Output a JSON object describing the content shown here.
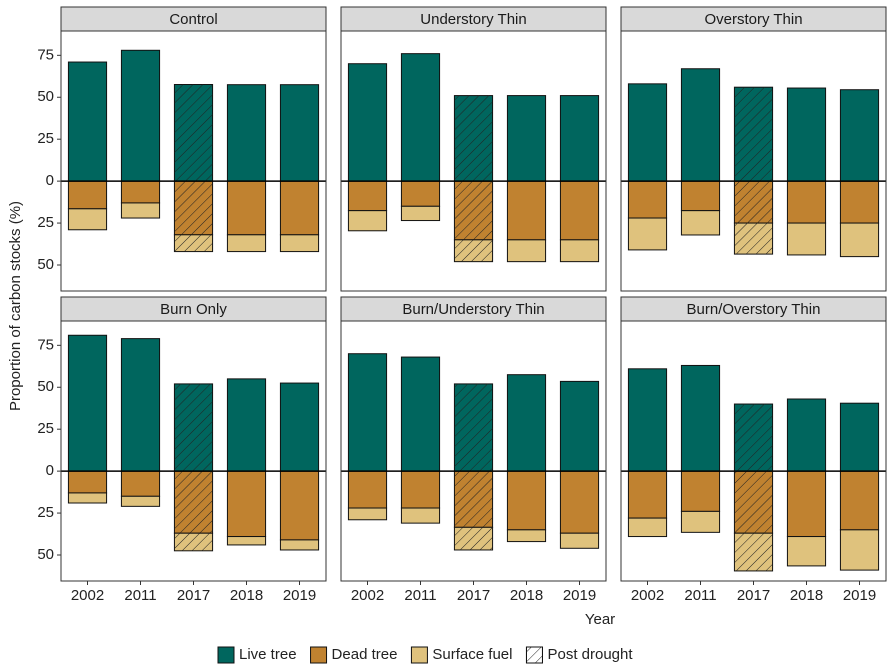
{
  "chart_data": {
    "type": "bar",
    "x_label": "Year",
    "y_label": "Proportion of carbon stocks (%)",
    "categories": [
      "2002",
      "2011",
      "2017",
      "2018",
      "2019"
    ],
    "ylim": [
      -65.5,
      89.5
    ],
    "yticks": [
      75,
      50,
      25,
      0,
      {
        "value": -25,
        "label": "25"
      },
      {
        "value": -50,
        "label": "50"
      }
    ],
    "stacked": true,
    "legend": "bottom",
    "series": [
      {
        "name": "Live tree",
        "color": "#00665e"
      },
      {
        "name": "Dead tree",
        "color": "#c08230"
      },
      {
        "name": "Surface fuel",
        "color": "#dfc27d"
      }
    ],
    "hatch": {
      "name": "Post drought",
      "category": "2017"
    },
    "panels": [
      {
        "title": "Control",
        "values": [
          [
            71,
            78,
            57.6,
            57.5,
            57.5
          ],
          [
            -16.5,
            -13,
            -32,
            -32,
            -32
          ],
          [
            -12.5,
            -9,
            -10,
            -10,
            -10
          ]
        ]
      },
      {
        "title": "Understory Thin",
        "values": [
          [
            70,
            76,
            51,
            51,
            51
          ],
          [
            -17.6,
            -15,
            -35,
            -35,
            -35
          ],
          [
            -12,
            -8.5,
            -13,
            -13,
            -13
          ]
        ]
      },
      {
        "title": "Overstory Thin",
        "values": [
          [
            58,
            67,
            56,
            55.5,
            54.5
          ],
          [
            -22,
            -17.6,
            -25,
            -25,
            -25
          ],
          [
            -19,
            -14.5,
            -18.5,
            -19,
            -20
          ]
        ]
      },
      {
        "title": "Burn Only",
        "values": [
          [
            81,
            79,
            52,
            55,
            52.5
          ],
          [
            -13,
            -15,
            -37,
            -39,
            -41
          ],
          [
            -6,
            -6,
            -10.5,
            -5,
            -6
          ]
        ]
      },
      {
        "title": "Burn/Understory Thin",
        "values": [
          [
            70,
            68,
            52,
            57.5,
            53.5
          ],
          [
            -22,
            -22,
            -33.5,
            -35,
            -37
          ],
          [
            -7,
            -9,
            -13.5,
            -7,
            -9
          ]
        ]
      },
      {
        "title": "Burn/Overstory Thin",
        "values": [
          [
            61,
            63,
            40,
            43,
            40.5
          ],
          [
            -28,
            -24,
            -37,
            -39,
            -35
          ],
          [
            -11,
            -12.5,
            -22.5,
            -17.5,
            -24
          ]
        ]
      }
    ]
  }
}
